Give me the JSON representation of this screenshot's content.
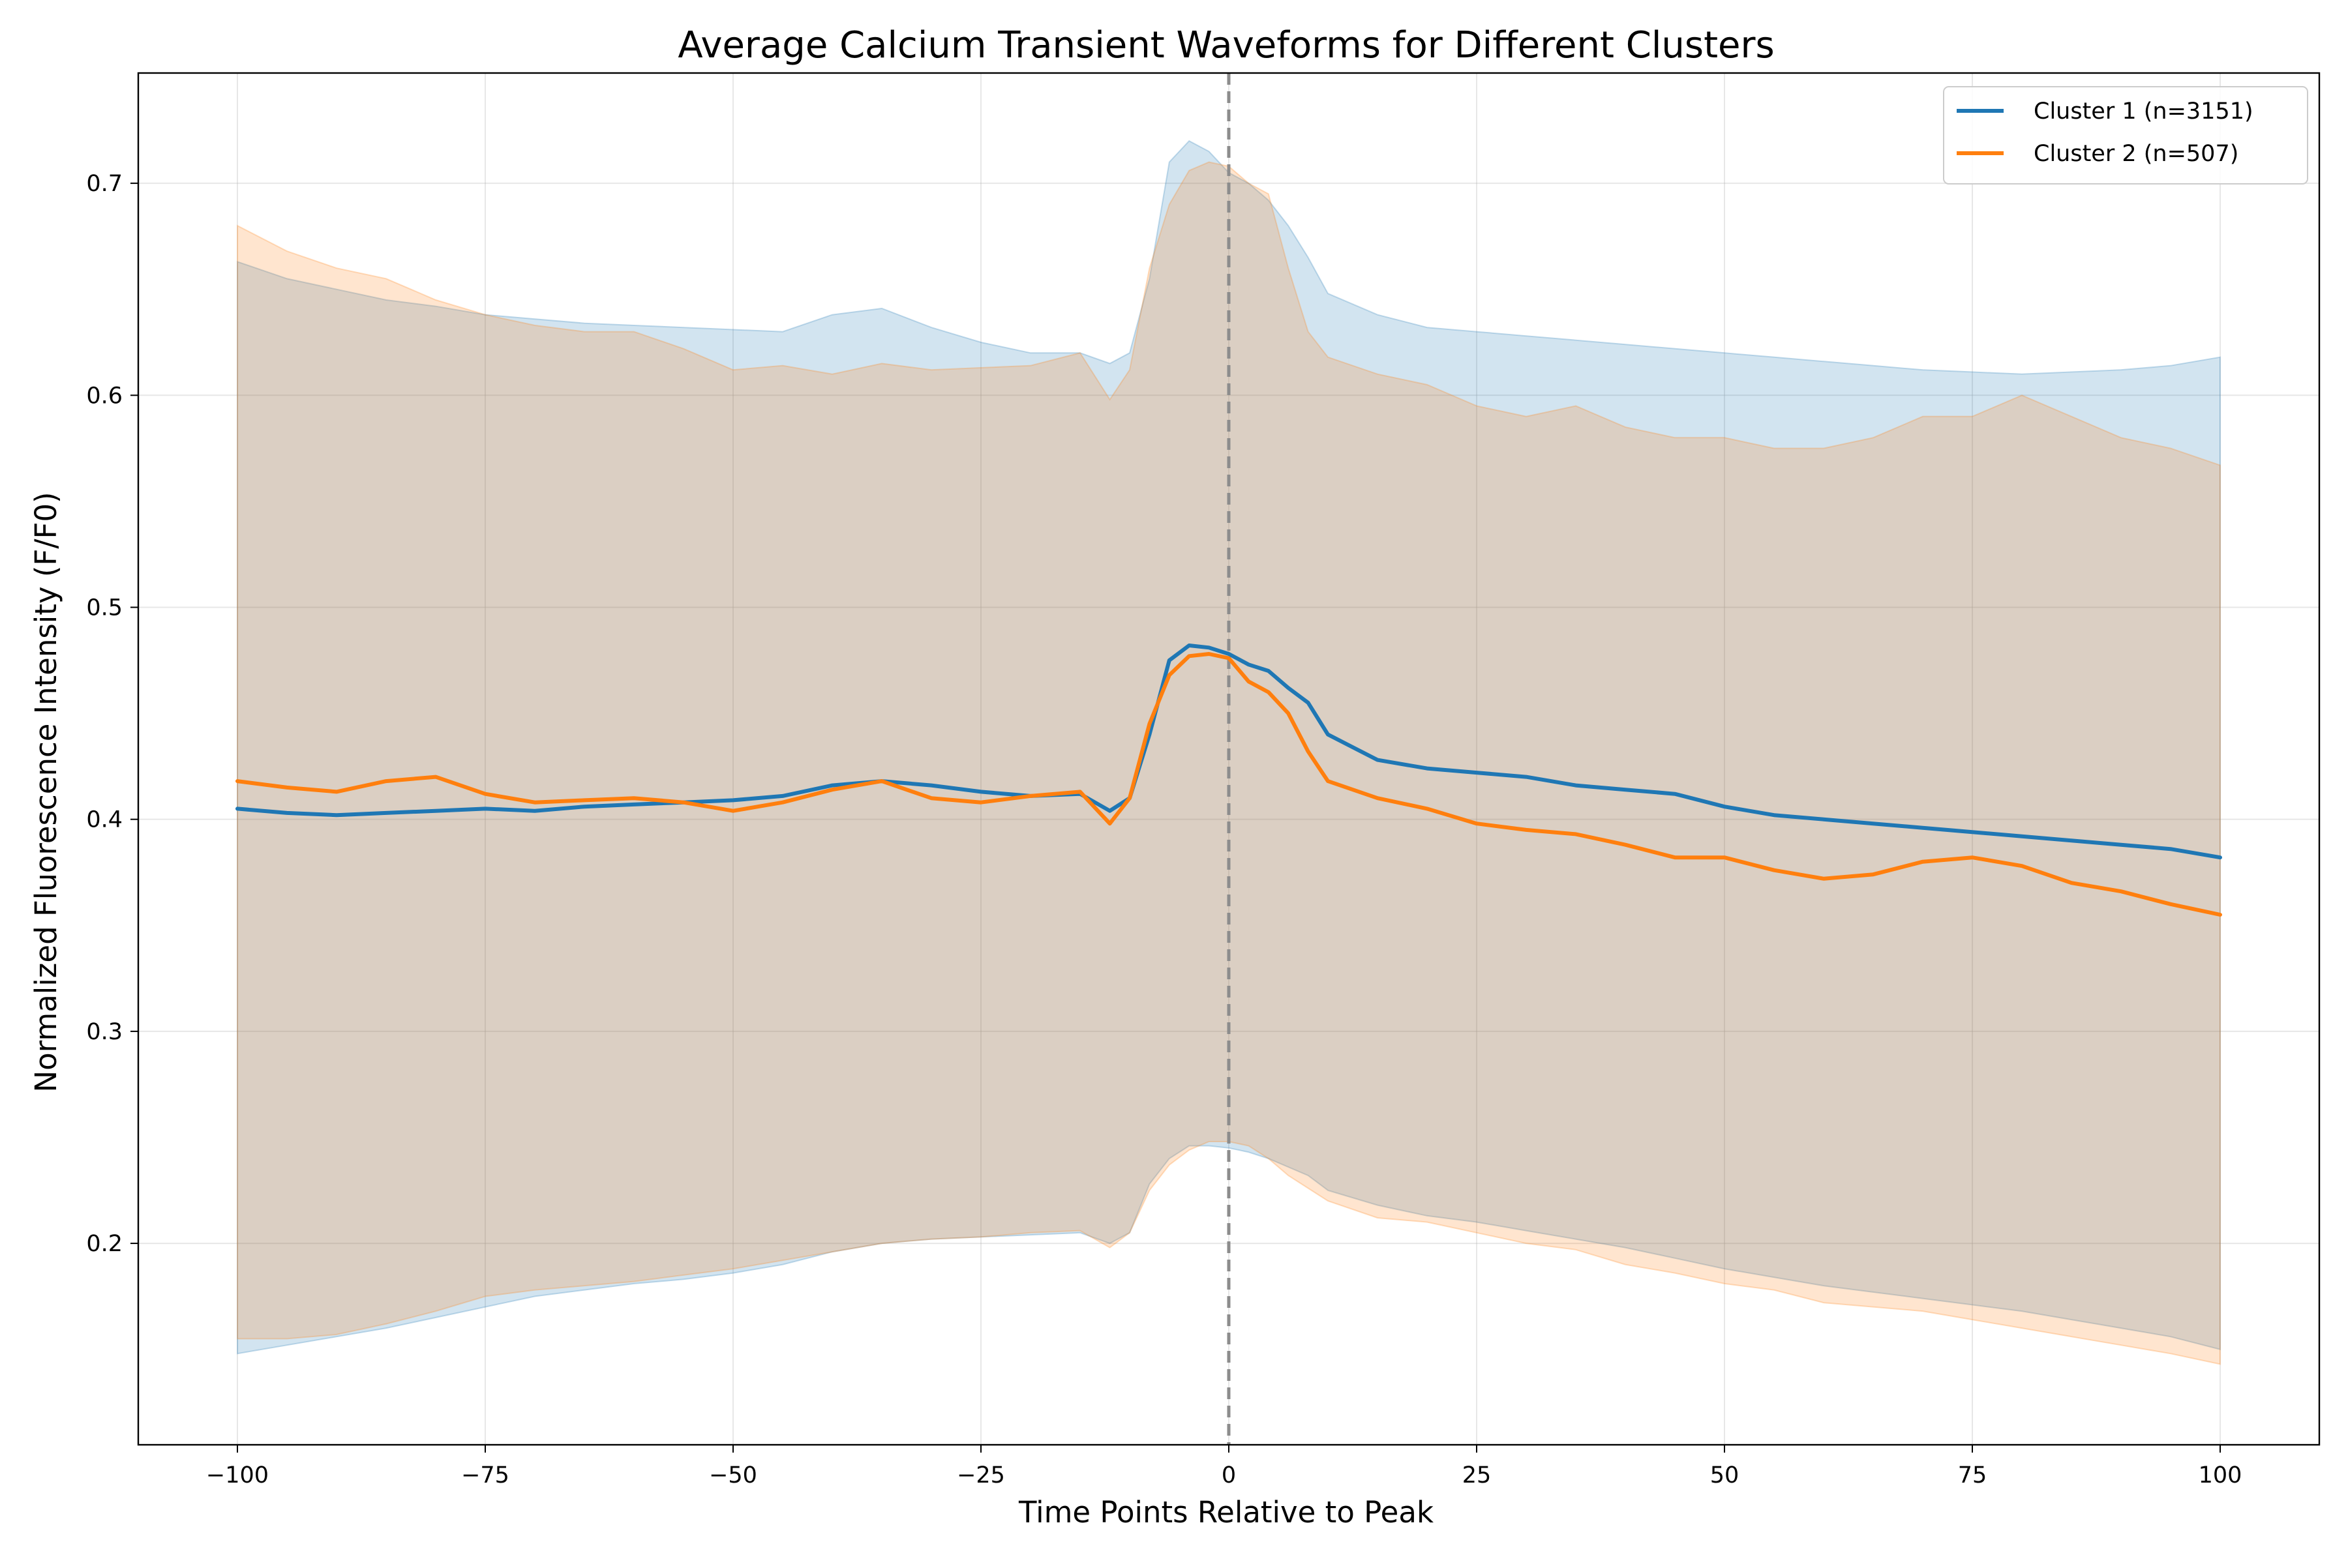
{
  "chart_data": {
    "type": "line",
    "title": "Average Calcium Transient Waveforms for Different Clusters",
    "xlabel": "Time Points Relative to Peak",
    "ylabel": "Normalized Fluorescence Intensity (F/F0)",
    "xlim": [
      -110,
      110
    ],
    "ylim": [
      0.105,
      0.752
    ],
    "xticks": [
      -100,
      -75,
      -50,
      -25,
      0,
      25,
      50,
      75,
      100
    ],
    "xtick_labels": [
      "−100",
      "−75",
      "−50",
      "−25",
      "0",
      "25",
      "50",
      "75",
      "100"
    ],
    "yticks": [
      0.2,
      0.3,
      0.4,
      0.5,
      0.6,
      0.7
    ],
    "ytick_labels": [
      "0.2",
      "0.3",
      "0.4",
      "0.5",
      "0.6",
      "0.7"
    ],
    "grid": true,
    "legend_position": "top-right",
    "reference_line": {
      "x": 0,
      "style": "dashed",
      "color": "#8c8c8c"
    },
    "x": [
      -100,
      -95,
      -90,
      -85,
      -80,
      -75,
      -70,
      -65,
      -60,
      -55,
      -50,
      -45,
      -40,
      -35,
      -30,
      -25,
      -20,
      -15,
      -12,
      -10,
      -8,
      -6,
      -4,
      -2,
      0,
      2,
      4,
      6,
      8,
      10,
      15,
      20,
      25,
      30,
      35,
      40,
      45,
      50,
      55,
      60,
      65,
      70,
      75,
      80,
      85,
      90,
      95,
      100
    ],
    "series": [
      {
        "name": "Cluster 1 (n=3151)",
        "color": "#1f77b4",
        "fill_color": "#1f77b4",
        "fill_opacity": 0.2,
        "values": [
          0.405,
          0.403,
          0.402,
          0.403,
          0.404,
          0.405,
          0.404,
          0.406,
          0.407,
          0.408,
          0.409,
          0.411,
          0.416,
          0.418,
          0.416,
          0.413,
          0.411,
          0.412,
          0.404,
          0.41,
          0.44,
          0.475,
          0.482,
          0.481,
          0.478,
          0.473,
          0.47,
          0.462,
          0.455,
          0.44,
          0.428,
          0.424,
          0.422,
          0.42,
          0.416,
          0.414,
          0.412,
          0.406,
          0.402,
          0.4,
          0.398,
          0.396,
          0.394,
          0.392,
          0.39,
          0.388,
          0.386,
          0.382
        ],
        "upper": [
          0.663,
          0.655,
          0.65,
          0.645,
          0.642,
          0.638,
          0.636,
          0.634,
          0.633,
          0.632,
          0.631,
          0.63,
          0.638,
          0.641,
          0.632,
          0.625,
          0.62,
          0.62,
          0.615,
          0.62,
          0.655,
          0.71,
          0.72,
          0.715,
          0.705,
          0.7,
          0.692,
          0.68,
          0.665,
          0.648,
          0.638,
          0.632,
          0.63,
          0.628,
          0.626,
          0.624,
          0.622,
          0.62,
          0.618,
          0.616,
          0.614,
          0.612,
          0.611,
          0.61,
          0.611,
          0.612,
          0.614,
          0.618
        ],
        "lower": [
          0.148,
          0.152,
          0.156,
          0.16,
          0.165,
          0.17,
          0.175,
          0.178,
          0.181,
          0.183,
          0.186,
          0.19,
          0.196,
          0.2,
          0.202,
          0.203,
          0.204,
          0.205,
          0.2,
          0.205,
          0.228,
          0.24,
          0.246,
          0.246,
          0.245,
          0.243,
          0.24,
          0.236,
          0.232,
          0.225,
          0.218,
          0.213,
          0.21,
          0.206,
          0.202,
          0.198,
          0.193,
          0.188,
          0.184,
          0.18,
          0.177,
          0.174,
          0.171,
          0.168,
          0.164,
          0.16,
          0.156,
          0.15
        ]
      },
      {
        "name": "Cluster 2 (n=507)",
        "color": "#ff7f0e",
        "fill_color": "#ff7f0e",
        "fill_opacity": 0.2,
        "values": [
          0.418,
          0.415,
          0.413,
          0.418,
          0.42,
          0.412,
          0.408,
          0.409,
          0.41,
          0.408,
          0.404,
          0.408,
          0.414,
          0.418,
          0.41,
          0.408,
          0.411,
          0.413,
          0.398,
          0.41,
          0.445,
          0.468,
          0.477,
          0.478,
          0.476,
          0.465,
          0.46,
          0.45,
          0.432,
          0.418,
          0.41,
          0.405,
          0.398,
          0.395,
          0.393,
          0.388,
          0.382,
          0.382,
          0.376,
          0.372,
          0.374,
          0.38,
          0.382,
          0.378,
          0.37,
          0.366,
          0.36,
          0.355
        ],
        "upper": [
          0.68,
          0.668,
          0.66,
          0.655,
          0.645,
          0.638,
          0.633,
          0.63,
          0.63,
          0.622,
          0.612,
          0.614,
          0.61,
          0.615,
          0.612,
          0.613,
          0.614,
          0.62,
          0.598,
          0.612,
          0.66,
          0.69,
          0.706,
          0.71,
          0.708,
          0.7,
          0.695,
          0.66,
          0.63,
          0.618,
          0.61,
          0.605,
          0.595,
          0.59,
          0.595,
          0.585,
          0.58,
          0.58,
          0.575,
          0.575,
          0.58,
          0.59,
          0.59,
          0.6,
          0.59,
          0.58,
          0.575,
          0.567
        ],
        "lower": [
          0.155,
          0.155,
          0.157,
          0.162,
          0.168,
          0.175,
          0.178,
          0.18,
          0.182,
          0.185,
          0.188,
          0.192,
          0.196,
          0.2,
          0.202,
          0.203,
          0.205,
          0.206,
          0.198,
          0.205,
          0.225,
          0.237,
          0.244,
          0.248,
          0.248,
          0.246,
          0.24,
          0.232,
          0.226,
          0.22,
          0.212,
          0.21,
          0.205,
          0.2,
          0.197,
          0.19,
          0.186,
          0.181,
          0.178,
          0.172,
          0.17,
          0.168,
          0.164,
          0.16,
          0.156,
          0.152,
          0.148,
          0.143
        ]
      }
    ]
  }
}
